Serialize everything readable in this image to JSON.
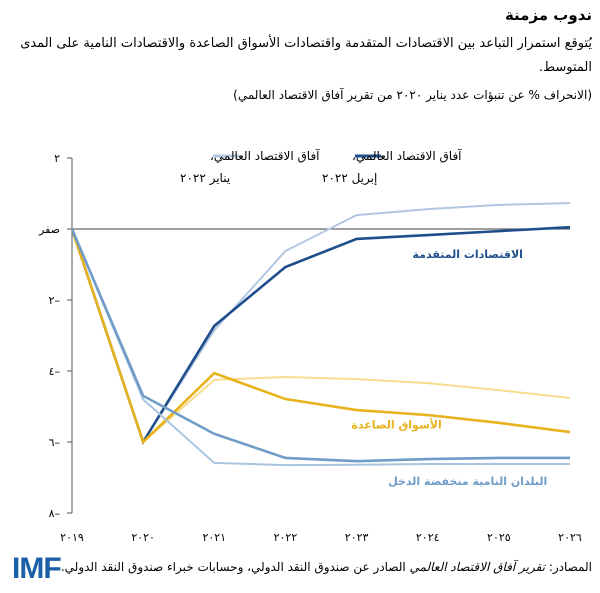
{
  "header": {
    "title": "ندوب مزمنة",
    "subtitle": "يُتوقع استمرار التباعد بين الاقتصادات المتقدمة واقتصادات الأسواق الصاعدة والاقتصادات النامية على المدى المتوسط.",
    "unit": "(الانحراف % عن تنبؤات عدد يناير ٢٠٢٠ من تقرير آفاق الاقتصاد العالمي)"
  },
  "chart_data": {
    "type": "line",
    "x": [
      "٢٠١٩",
      "٢٠٢٠",
      "٢٠٢١",
      "٢٠٢٢",
      "٢٠٢٣",
      "٢٠٢٤",
      "٢٠٢٥",
      "٢٠٢٦"
    ],
    "ylim": [
      -8,
      2
    ],
    "yticks": [
      {
        "v": 2,
        "label": "٢"
      },
      {
        "v": 0,
        "label": "صفر"
      },
      {
        "v": -2,
        "label": "٢–"
      },
      {
        "v": -4,
        "label": "٤–"
      },
      {
        "v": -6,
        "label": "٦–"
      },
      {
        "v": -8,
        "label": "٨–"
      }
    ],
    "legend": [
      {
        "line1": "آفاق الاقتصاد العالمي،",
        "line2": "إبريل ٢٠٢٢",
        "color": "#1f4e8c"
      },
      {
        "line1": "آفاق الاقتصاد العالمي،",
        "line2": "يناير ٢٠٢٢",
        "color": "#b3c7e0"
      }
    ],
    "series": [
      {
        "group": "advanced",
        "vintage": "January 2022",
        "color": "#b3c7e0",
        "values": [
          0,
          -6,
          -2.85,
          -0.62,
          0.39,
          0.56,
          0.68,
          0.73
        ]
      },
      {
        "group": "advanced",
        "vintage": "April 2022",
        "color": "#1f4e8c",
        "values": [
          0,
          -6,
          -2.73,
          -1.07,
          -0.28,
          -0.17,
          -0.06,
          0.05
        ]
      },
      {
        "group": "emerging",
        "vintage": "January 2022",
        "color": "#f7dc8f",
        "values": [
          0,
          -6,
          -4.25,
          -4.17,
          -4.23,
          -4.34,
          -4.54,
          -4.76
        ]
      },
      {
        "group": "emerging",
        "vintage": "April 2022",
        "color": "#e8b21c",
        "values": [
          0,
          -6,
          -4.06,
          -4.79,
          -5.1,
          -5.24,
          -5.46,
          -5.72
        ]
      },
      {
        "group": "low-income",
        "vintage": "January 2022",
        "color": "#a9c4df",
        "values": [
          0,
          -4.8,
          -6.59,
          -6.65,
          -6.64,
          -6.62,
          -6.62,
          -6.62
        ]
      },
      {
        "group": "low-income",
        "vintage": "April 2022",
        "color": "#6f9cc8",
        "values": [
          0,
          -4.7,
          -5.77,
          -6.45,
          -6.54,
          -6.48,
          -6.45,
          -6.45
        ]
      }
    ],
    "annotations": [
      {
        "text": "الاقتصادات المتقدمة",
        "color": "#1f4e8c",
        "x": "٢٠٢٤",
        "y": -0.7
      },
      {
        "text": "الأسواق الصاعدة",
        "color": "#e8b21c",
        "x": "٢٠٢٣",
        "y": -5.5
      },
      {
        "text": "البلدان النامية منخفضة الدخل",
        "color": "#6f9cc8",
        "x": "٢٠٢٤",
        "y": -7.1
      }
    ],
    "zero_line": true
  },
  "footer": {
    "source_prefix": "المصادر: ",
    "source_italic": "تقرير آفاق الاقتصاد العالمي",
    "source_rest": " الصادر عن صندوق النقد الدولي، وحسابات خبراء صندوق النقد الدولي.",
    "logo": "IMF"
  }
}
